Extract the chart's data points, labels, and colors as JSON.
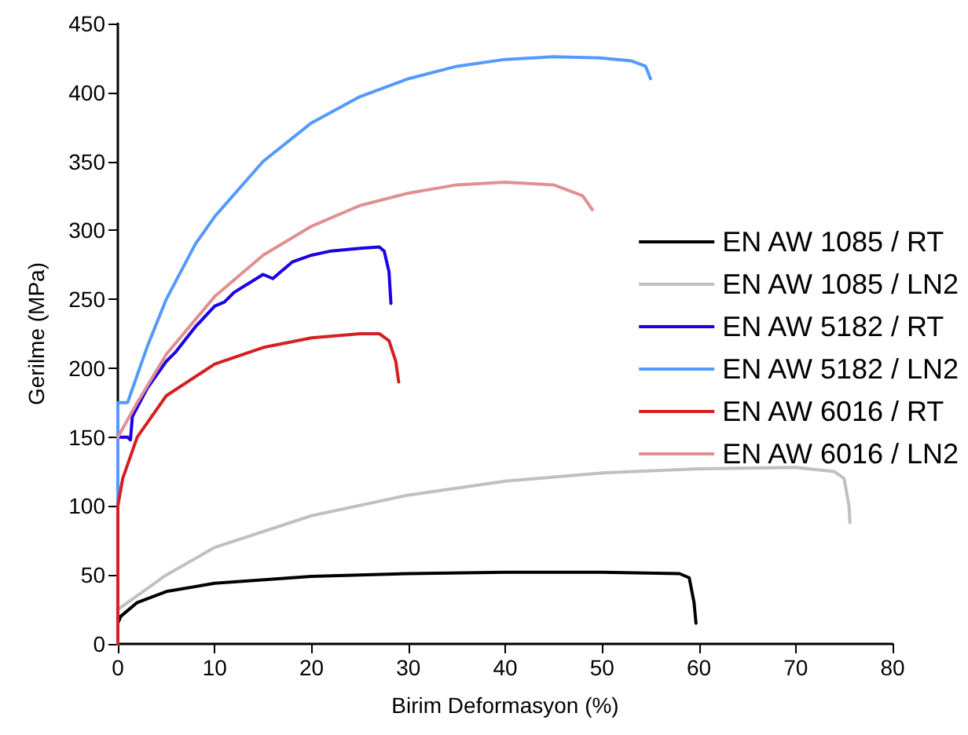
{
  "chart_data": {
    "type": "line",
    "xlabel": "Birim Deformasyon (%)",
    "ylabel": "Gerilme (MPa)",
    "xlim": [
      0,
      80
    ],
    "ylim": [
      0,
      450
    ],
    "xticks": [
      0,
      10,
      20,
      30,
      40,
      50,
      60,
      70,
      80
    ],
    "yticks": [
      0,
      50,
      100,
      150,
      200,
      250,
      300,
      350,
      400,
      450
    ],
    "grid": false,
    "legend": "right",
    "marker": "none",
    "line_style": "solid",
    "series": [
      {
        "name": "EN AW 1085 / RT",
        "color": "#000000",
        "x": [
          0,
          0,
          0.3,
          2,
          5,
          10,
          20,
          30,
          40,
          50,
          58,
          59,
          59.5,
          59.7
        ],
        "values": [
          0,
          15,
          20,
          30,
          38,
          44,
          49,
          51,
          52,
          52,
          51,
          48,
          30,
          15
        ]
      },
      {
        "name": "EN AW 1085 / LN2",
        "color": "#c0c0c0",
        "x": [
          0,
          0,
          5,
          10,
          20,
          30,
          40,
          50,
          60,
          70,
          74,
          75,
          75.5,
          75.6
        ],
        "values": [
          0,
          25,
          50,
          70,
          93,
          108,
          118,
          124,
          127,
          128,
          125,
          120,
          100,
          88
        ]
      },
      {
        "name": "EN AW 5182 / RT",
        "color": "#1a00e6",
        "x": [
          0,
          0,
          1,
          1.3,
          1.5,
          3,
          5,
          6,
          8,
          10,
          11,
          12,
          15,
          16,
          18,
          20,
          22,
          25,
          27,
          27.5,
          28,
          28.2
        ],
        "values": [
          0,
          150,
          150,
          148,
          165,
          185,
          205,
          212,
          230,
          245,
          248,
          255,
          268,
          265,
          277,
          282,
          285,
          287,
          288,
          285,
          270,
          247
        ]
      },
      {
        "name": "EN AW 5182 / LN2",
        "color": "#5599ff",
        "x": [
          0,
          0,
          1,
          1.5,
          3,
          5,
          8,
          10,
          15,
          20,
          25,
          30,
          35,
          40,
          45,
          50,
          53,
          54.5,
          55
        ],
        "values": [
          0,
          175,
          175,
          185,
          215,
          250,
          290,
          310,
          350,
          378,
          397,
          410,
          419,
          424,
          426,
          425,
          423,
          419,
          410
        ]
      },
      {
        "name": "EN AW 6016 / RT",
        "color": "#d42020",
        "x": [
          0,
          0,
          0.5,
          2,
          5,
          10,
          15,
          20,
          25,
          27,
          28,
          28.7,
          29
        ],
        "values": [
          0,
          100,
          120,
          150,
          180,
          203,
          215,
          222,
          225,
          225,
          220,
          205,
          190
        ]
      },
      {
        "name": "EN AW 6016 / LN2",
        "color": "#e09090",
        "x": [
          0,
          2,
          5,
          10,
          15,
          20,
          25,
          30,
          35,
          40,
          45,
          48,
          49
        ],
        "values": [
          150,
          175,
          210,
          252,
          282,
          303,
          318,
          327,
          333,
          335,
          333,
          325,
          315
        ]
      }
    ]
  }
}
